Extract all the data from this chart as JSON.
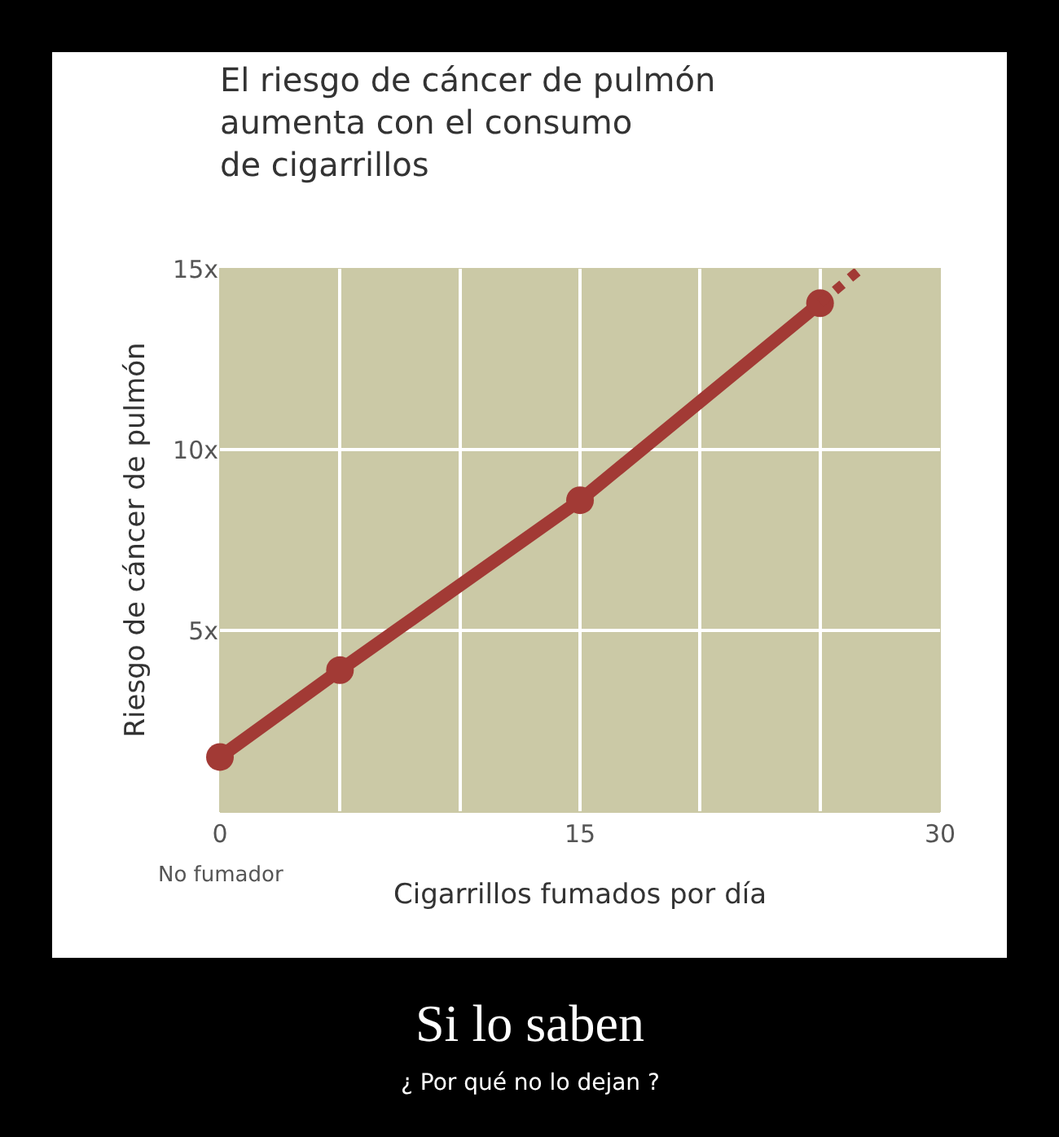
{
  "chart_data": {
    "type": "line",
    "title": "El riesgo de cáncer de pulmón\naumenta con el consumo\nde cigarrillos",
    "xlabel": "Cigarrillos fumados por día",
    "ylabel": "Riesgo de cáncer de pulmón",
    "xlim": [
      0,
      30
    ],
    "ylim": [
      0,
      15
    ],
    "xticks": [
      0,
      {
        "value": 5,
        "label": null
      },
      {
        "value": 10,
        "label": null
      },
      15,
      {
        "value": 20,
        "label": null
      },
      {
        "value": 25,
        "label": null
      },
      30
    ],
    "yticks": [
      {
        "value": 5,
        "label": "5x"
      },
      {
        "value": 10,
        "label": "10x"
      },
      {
        "value": 15,
        "label": "15x"
      }
    ],
    "grid": true,
    "series": [
      {
        "color": "#a23a35",
        "x": [
          0,
          5,
          15,
          25
        ],
        "values": [
          1.5,
          3.9,
          8.6,
          14.05
        ],
        "marker": "circle",
        "line_style": "solid"
      },
      {
        "color": "#a23a35",
        "x": [
          25,
          26.7
        ],
        "values": [
          14.05,
          15
        ],
        "marker": "none",
        "line_style": "dotted"
      }
    ],
    "annotations": [
      "No fumador",
      "Si lo saben",
      "¿ Por qué no lo dejan ?"
    ]
  }
}
